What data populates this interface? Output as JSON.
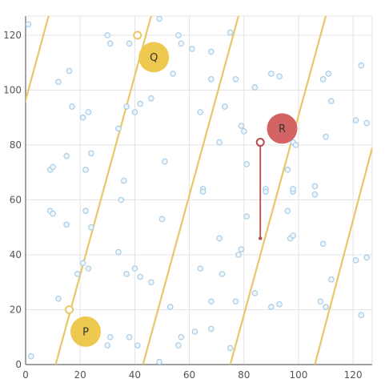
{
  "chart_data": {
    "type": "scatter",
    "title": "",
    "xlabel": "",
    "ylabel": "",
    "xlim": [
      0,
      127
    ],
    "ylim": [
      0,
      127
    ],
    "x_ticks": [
      0,
      20,
      40,
      60,
      80,
      100,
      120
    ],
    "y_ticks": [
      0,
      20,
      40,
      60,
      80,
      100,
      120
    ],
    "grid": true,
    "colors": {
      "points_fill": "#eef6fb",
      "points_stroke": "#a9cde6",
      "lines": "#e8c766",
      "marker_gold": "#edc94f",
      "marker_red": "#d46464",
      "segment": "#b84a4a"
    },
    "lines": [
      {
        "x1": -10,
        "y1": 60,
        "x2": 12,
        "y2": 140
      },
      {
        "x1": 11,
        "y1": 0,
        "x2": 46,
        "y2": 127
      },
      {
        "x1": 43,
        "y1": 0,
        "x2": 78,
        "y2": 127
      },
      {
        "x1": 75,
        "y1": 0,
        "x2": 110,
        "y2": 127
      },
      {
        "x1": 106,
        "y1": 0,
        "x2": 127,
        "y2": 79
      }
    ],
    "open_points": [
      {
        "x": 16,
        "y": 20
      },
      {
        "x": 41,
        "y": 120
      },
      {
        "x": 86,
        "y": 81
      }
    ],
    "segment": {
      "x1": 86,
      "y1": 81,
      "x2": 86,
      "y2": 46
    },
    "markers": [
      {
        "label": "P",
        "x": 22,
        "y": 12,
        "color": "#edc94f"
      },
      {
        "label": "Q",
        "x": 47,
        "y": 112,
        "color": "#edc94f"
      },
      {
        "label": "R",
        "x": 94,
        "y": 86,
        "color": "#d46464"
      }
    ],
    "points": [
      [
        1,
        124
      ],
      [
        49,
        126
      ],
      [
        30,
        120
      ],
      [
        31,
        117
      ],
      [
        38,
        117
      ],
      [
        56,
        120
      ],
      [
        57,
        117
      ],
      [
        61,
        115
      ],
      [
        68,
        114
      ],
      [
        75,
        121
      ],
      [
        12,
        103
      ],
      [
        16,
        107
      ],
      [
        17,
        94
      ],
      [
        21,
        90
      ],
      [
        23,
        92
      ],
      [
        34,
        86
      ],
      [
        37,
        94
      ],
      [
        40,
        92
      ],
      [
        42,
        95
      ],
      [
        46,
        97
      ],
      [
        54,
        106
      ],
      [
        64,
        92
      ],
      [
        68,
        104
      ],
      [
        73,
        94
      ],
      [
        77,
        104
      ],
      [
        84,
        101
      ],
      [
        90,
        106
      ],
      [
        93,
        105
      ],
      [
        111,
        106
      ],
      [
        109,
        104
      ],
      [
        112,
        96
      ],
      [
        121,
        89
      ],
      [
        125,
        88
      ],
      [
        123,
        109
      ],
      [
        79,
        87
      ],
      [
        80,
        85
      ],
      [
        98,
        81
      ],
      [
        99,
        80
      ],
      [
        110,
        83
      ],
      [
        91,
        86
      ],
      [
        15,
        76
      ],
      [
        9,
        71
      ],
      [
        10,
        72
      ],
      [
        22,
        71
      ],
      [
        24,
        77
      ],
      [
        36,
        67
      ],
      [
        35,
        60
      ],
      [
        51,
        74
      ],
      [
        65,
        64
      ],
      [
        65,
        63
      ],
      [
        71,
        81
      ],
      [
        81,
        73
      ],
      [
        88,
        64
      ],
      [
        88,
        63
      ],
      [
        96,
        71
      ],
      [
        96,
        56
      ],
      [
        98,
        63
      ],
      [
        98,
        64
      ],
      [
        106,
        65
      ],
      [
        106,
        62
      ],
      [
        9,
        56
      ],
      [
        10,
        55
      ],
      [
        15,
        51
      ],
      [
        22,
        56
      ],
      [
        24,
        50
      ],
      [
        50,
        53
      ],
      [
        71,
        46
      ],
      [
        81,
        54
      ],
      [
        97,
        46
      ],
      [
        98,
        47
      ],
      [
        109,
        44
      ],
      [
        121,
        38
      ],
      [
        125,
        39
      ],
      [
        34,
        41
      ],
      [
        37,
        33
      ],
      [
        40,
        35
      ],
      [
        42,
        32
      ],
      [
        46,
        30
      ],
      [
        19,
        33
      ],
      [
        21,
        37
      ],
      [
        23,
        35
      ],
      [
        64,
        35
      ],
      [
        72,
        33
      ],
      [
        78,
        40
      ],
      [
        79,
        42
      ],
      [
        12,
        24
      ],
      [
        53,
        21
      ],
      [
        68,
        23
      ],
      [
        77,
        23
      ],
      [
        84,
        26
      ],
      [
        90,
        21
      ],
      [
        93,
        22
      ],
      [
        108,
        23
      ],
      [
        110,
        21
      ],
      [
        112,
        31
      ],
      [
        123,
        18
      ],
      [
        2,
        3
      ],
      [
        30,
        7
      ],
      [
        31,
        10
      ],
      [
        38,
        10
      ],
      [
        41,
        7
      ],
      [
        49,
        1
      ],
      [
        56,
        7
      ],
      [
        57,
        10
      ],
      [
        62,
        12
      ],
      [
        68,
        13
      ],
      [
        75,
        6
      ]
    ]
  }
}
